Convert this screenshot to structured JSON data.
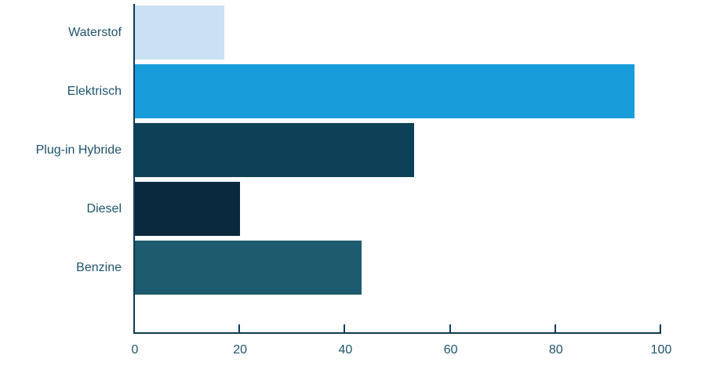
{
  "chart_data": {
    "type": "bar",
    "orientation": "horizontal",
    "categories": [
      "Waterstof",
      "Elektrisch",
      "Plug-in Hybride",
      "Diesel",
      "Benzine"
    ],
    "values": [
      17,
      95,
      53,
      20,
      43
    ],
    "bar_colors": [
      "#CBE0F2",
      "#199DDA",
      "#0D4157",
      "#09293F",
      "#1D5C6E"
    ],
    "xlabel": "",
    "ylabel": "",
    "xlim": [
      0,
      100
    ],
    "xticks": [
      0,
      20,
      40,
      60,
      80,
      100
    ],
    "grid": false,
    "legend": "none",
    "axis_color": "#0F3B54",
    "text_color": "#1E536E",
    "background": "#FFFFFF"
  }
}
